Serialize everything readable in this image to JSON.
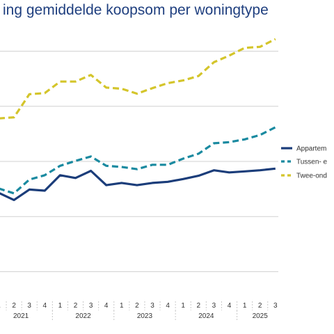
{
  "chart_data": {
    "type": "line",
    "title": "ing gemiddelde koopsom per woningtype",
    "x": [
      "1",
      "2",
      "3",
      "4",
      "1",
      "2",
      "3",
      "4",
      "1",
      "2",
      "3",
      "4",
      "1",
      "2",
      "3",
      "4",
      "1",
      "2",
      "3"
    ],
    "year_labels": [
      "2021",
      "2022",
      "2023",
      "2024",
      "2025"
    ],
    "series": [
      {
        "name": "Appartem",
        "color": "#1b3d7a",
        "dash": "solid",
        "values": [
          43,
          30,
          49,
          47,
          75,
          70,
          83,
          57,
          61,
          57,
          61,
          63,
          68,
          74,
          84,
          80,
          82,
          84,
          87
        ]
      },
      {
        "name": "Tussen- e",
        "color": "#1a8aa0",
        "dash": "dashed",
        "values": [
          51,
          42,
          67,
          75,
          92,
          101,
          109,
          92,
          90,
          86,
          94,
          94,
          105,
          114,
          133,
          135,
          140,
          148,
          162
        ]
      },
      {
        "name": "Twee-ond",
        "color": "#d4c52b",
        "dash": "dashed",
        "values": [
          178,
          180,
          222,
          224,
          245,
          245,
          257,
          234,
          232,
          223,
          233,
          242,
          247,
          255,
          280,
          292,
          306,
          308,
          322
        ]
      }
    ],
    "ylim": [
      -150,
      350
    ],
    "gridlines": [
      -100,
      0,
      100,
      200,
      300
    ],
    "xlabel": "",
    "ylabel": "",
    "legend": "right"
  }
}
